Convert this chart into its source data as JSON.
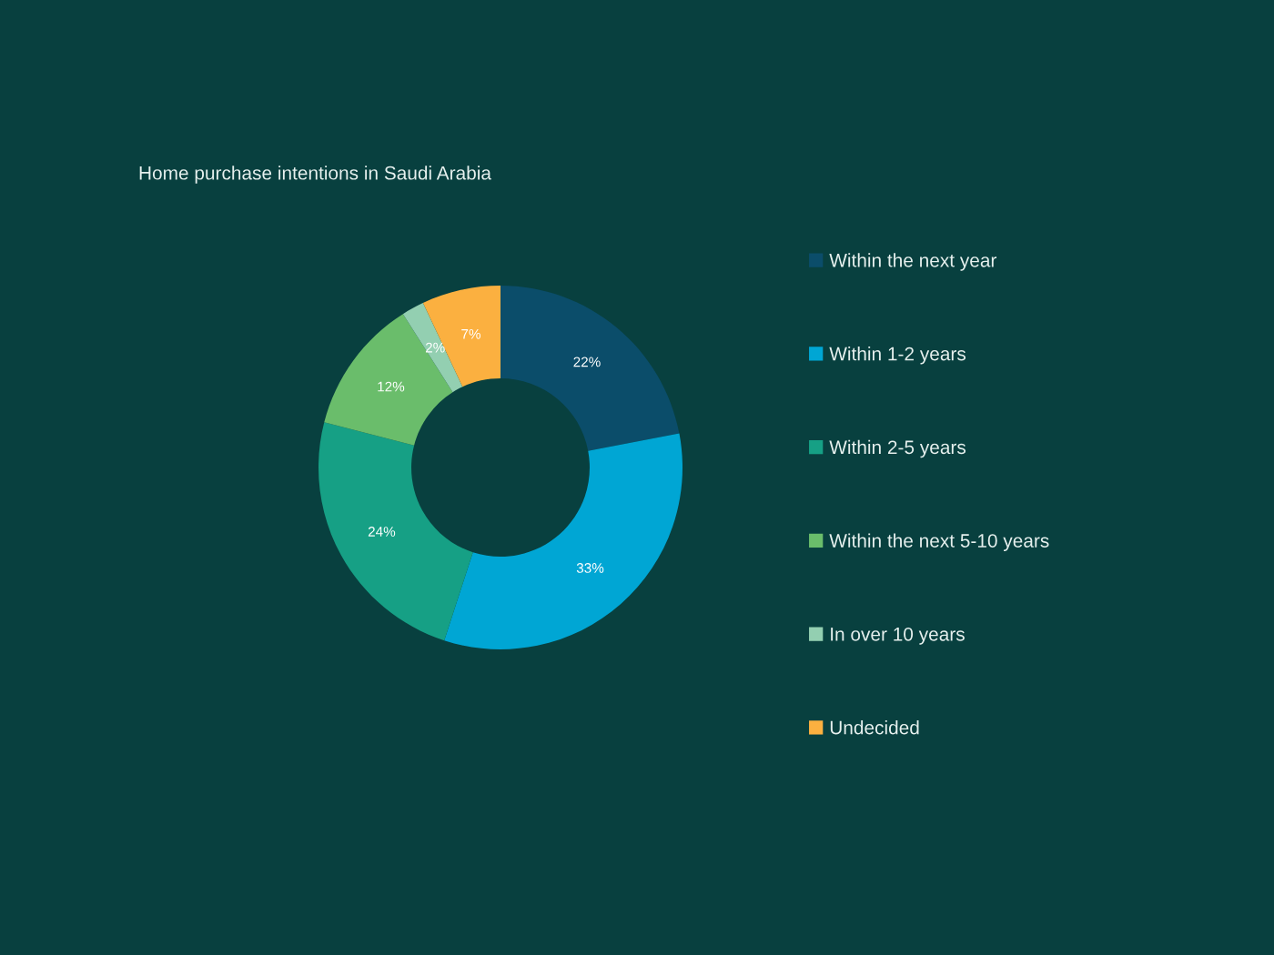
{
  "chart_data": {
    "type": "donut",
    "title": "Home purchase intentions in Saudi Arabia",
    "categories": [
      "Within the next year",
      "Within 1-2 years",
      "Within 2-5 years",
      "Within the next 5-10 years",
      "In over 10 years",
      "Undecided"
    ],
    "values": [
      22,
      33,
      24,
      12,
      2,
      7
    ],
    "colors": [
      "#0b4d6a",
      "#00a6d4",
      "#16a085",
      "#6abd6b",
      "#93cfb1",
      "#fbb040"
    ],
    "value_labels": [
      "22%",
      "33%",
      "24%",
      "12%",
      "2%",
      "7%"
    ],
    "legend": "right"
  }
}
